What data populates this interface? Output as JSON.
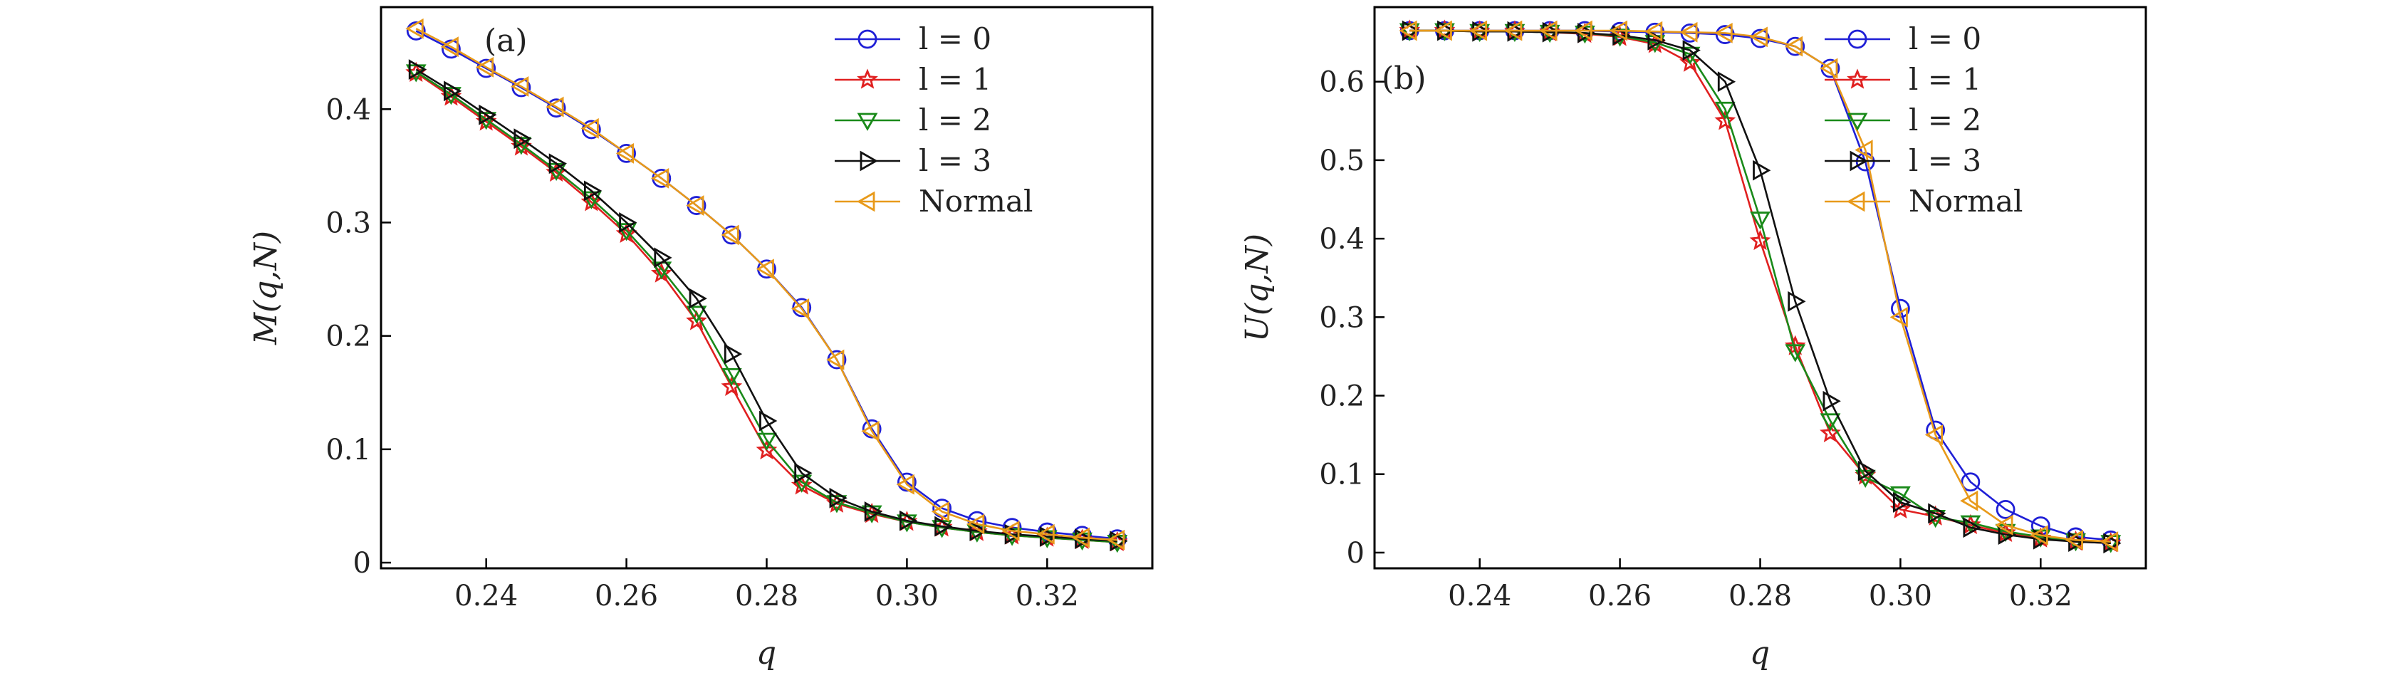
{
  "chart_data": [
    {
      "type": "line",
      "panel": "(a)",
      "xlabel": "q",
      "ylabel": "M(q,N)",
      "xlim": [
        0.225,
        0.335
      ],
      "ylim": [
        -0.005,
        0.49
      ],
      "xticks": [
        0.24,
        0.26,
        0.28,
        0.3,
        0.32
      ],
      "xtick_labels": [
        "0.24",
        "0.26",
        "0.28",
        "0.30",
        "0.32"
      ],
      "yticks": [
        0,
        0.1,
        0.2,
        0.3,
        0.4
      ],
      "ytick_labels": [
        "0",
        "0.1",
        "0.2",
        "0.3",
        "0.4"
      ],
      "legend_position": "top-right",
      "x": [
        0.23,
        0.235,
        0.24,
        0.245,
        0.25,
        0.255,
        0.26,
        0.265,
        0.27,
        0.275,
        0.28,
        0.285,
        0.29,
        0.295,
        0.3,
        0.305,
        0.31,
        0.315,
        0.32,
        0.325,
        0.33
      ],
      "series": [
        {
          "name": "l = 0",
          "color": "#1f1fd6",
          "marker": "circle",
          "values": [
            0.469,
            0.453,
            0.436,
            0.419,
            0.401,
            0.382,
            0.361,
            0.339,
            0.315,
            0.289,
            0.259,
            0.225,
            0.179,
            0.118,
            0.071,
            0.048,
            0.037,
            0.031,
            0.027,
            0.024,
            0.021
          ]
        },
        {
          "name": "l = 1",
          "color": "#e02020",
          "marker": "star",
          "values": [
            0.432,
            0.411,
            0.389,
            0.367,
            0.344,
            0.318,
            0.29,
            0.255,
            0.213,
            0.155,
            0.099,
            0.068,
            0.052,
            0.043,
            0.036,
            0.031,
            0.027,
            0.024,
            0.022,
            0.02,
            0.018
          ]
        },
        {
          "name": "l = 2",
          "color": "#1a8a1a",
          "marker": "triangle-down",
          "values": [
            0.433,
            0.413,
            0.391,
            0.369,
            0.346,
            0.321,
            0.293,
            0.259,
            0.22,
            0.165,
            0.108,
            0.071,
            0.053,
            0.044,
            0.036,
            0.031,
            0.027,
            0.024,
            0.022,
            0.02,
            0.018
          ]
        },
        {
          "name": "l = 3",
          "color": "#111111",
          "marker": "triangle-right",
          "values": [
            0.435,
            0.416,
            0.395,
            0.374,
            0.352,
            0.328,
            0.3,
            0.269,
            0.233,
            0.184,
            0.125,
            0.079,
            0.057,
            0.045,
            0.037,
            0.032,
            0.028,
            0.025,
            0.023,
            0.021,
            0.019
          ]
        },
        {
          "name": "Normal",
          "color": "#e89a1a",
          "marker": "triangle-left",
          "values": [
            0.471,
            0.455,
            0.437,
            0.42,
            0.402,
            0.383,
            0.361,
            0.339,
            0.315,
            0.289,
            0.259,
            0.224,
            0.179,
            0.116,
            0.069,
            0.045,
            0.034,
            0.028,
            0.025,
            0.022,
            0.02
          ]
        }
      ]
    },
    {
      "type": "line",
      "panel": "(b)",
      "xlabel": "q",
      "ylabel": "U(q,N)",
      "xlim": [
        0.225,
        0.335
      ],
      "ylim": [
        -0.02,
        0.695
      ],
      "xticks": [
        0.24,
        0.26,
        0.28,
        0.3,
        0.32
      ],
      "xtick_labels": [
        "0.24",
        "0.26",
        "0.28",
        "0.30",
        "0.32"
      ],
      "yticks": [
        0,
        0.1,
        0.2,
        0.3,
        0.4,
        0.5,
        0.6
      ],
      "ytick_labels": [
        "0",
        "0.1",
        "0.2",
        "0.3",
        "0.4",
        "0.5",
        "0.6"
      ],
      "legend_position": "top-right",
      "x": [
        0.23,
        0.235,
        0.24,
        0.245,
        0.25,
        0.255,
        0.26,
        0.265,
        0.27,
        0.275,
        0.28,
        0.285,
        0.29,
        0.295,
        0.3,
        0.305,
        0.31,
        0.315,
        0.32,
        0.325,
        0.33
      ],
      "series": [
        {
          "name": "l = 0",
          "color": "#1f1fd6",
          "marker": "circle",
          "values": [
            0.665,
            0.665,
            0.665,
            0.665,
            0.665,
            0.665,
            0.664,
            0.663,
            0.662,
            0.66,
            0.655,
            0.645,
            0.617,
            0.498,
            0.311,
            0.156,
            0.09,
            0.055,
            0.034,
            0.02,
            0.016
          ]
        },
        {
          "name": "l = 1",
          "color": "#e02020",
          "marker": "star",
          "values": [
            0.665,
            0.665,
            0.664,
            0.664,
            0.663,
            0.661,
            0.657,
            0.648,
            0.624,
            0.55,
            0.397,
            0.263,
            0.152,
            0.098,
            0.055,
            0.046,
            0.035,
            0.025,
            0.018,
            0.014,
            0.012
          ]
        },
        {
          "name": "l = 2",
          "color": "#1a8a1a",
          "marker": "triangle-down",
          "values": [
            0.665,
            0.665,
            0.664,
            0.664,
            0.663,
            0.662,
            0.658,
            0.65,
            0.635,
            0.565,
            0.425,
            0.256,
            0.168,
            0.096,
            0.075,
            0.045,
            0.038,
            0.027,
            0.02,
            0.015,
            0.013
          ]
        },
        {
          "name": "l = 3",
          "color": "#111111",
          "marker": "triangle-right",
          "values": [
            0.665,
            0.665,
            0.664,
            0.664,
            0.663,
            0.662,
            0.659,
            0.653,
            0.64,
            0.6,
            0.487,
            0.32,
            0.193,
            0.104,
            0.064,
            0.05,
            0.032,
            0.023,
            0.017,
            0.014,
            0.012
          ]
        },
        {
          "name": "Normal",
          "color": "#e89a1a",
          "marker": "triangle-left",
          "values": [
            0.665,
            0.665,
            0.665,
            0.665,
            0.665,
            0.665,
            0.665,
            0.664,
            0.663,
            0.662,
            0.657,
            0.645,
            0.617,
            0.513,
            0.3,
            0.15,
            0.066,
            0.035,
            0.022,
            0.016,
            0.014
          ]
        }
      ]
    }
  ]
}
